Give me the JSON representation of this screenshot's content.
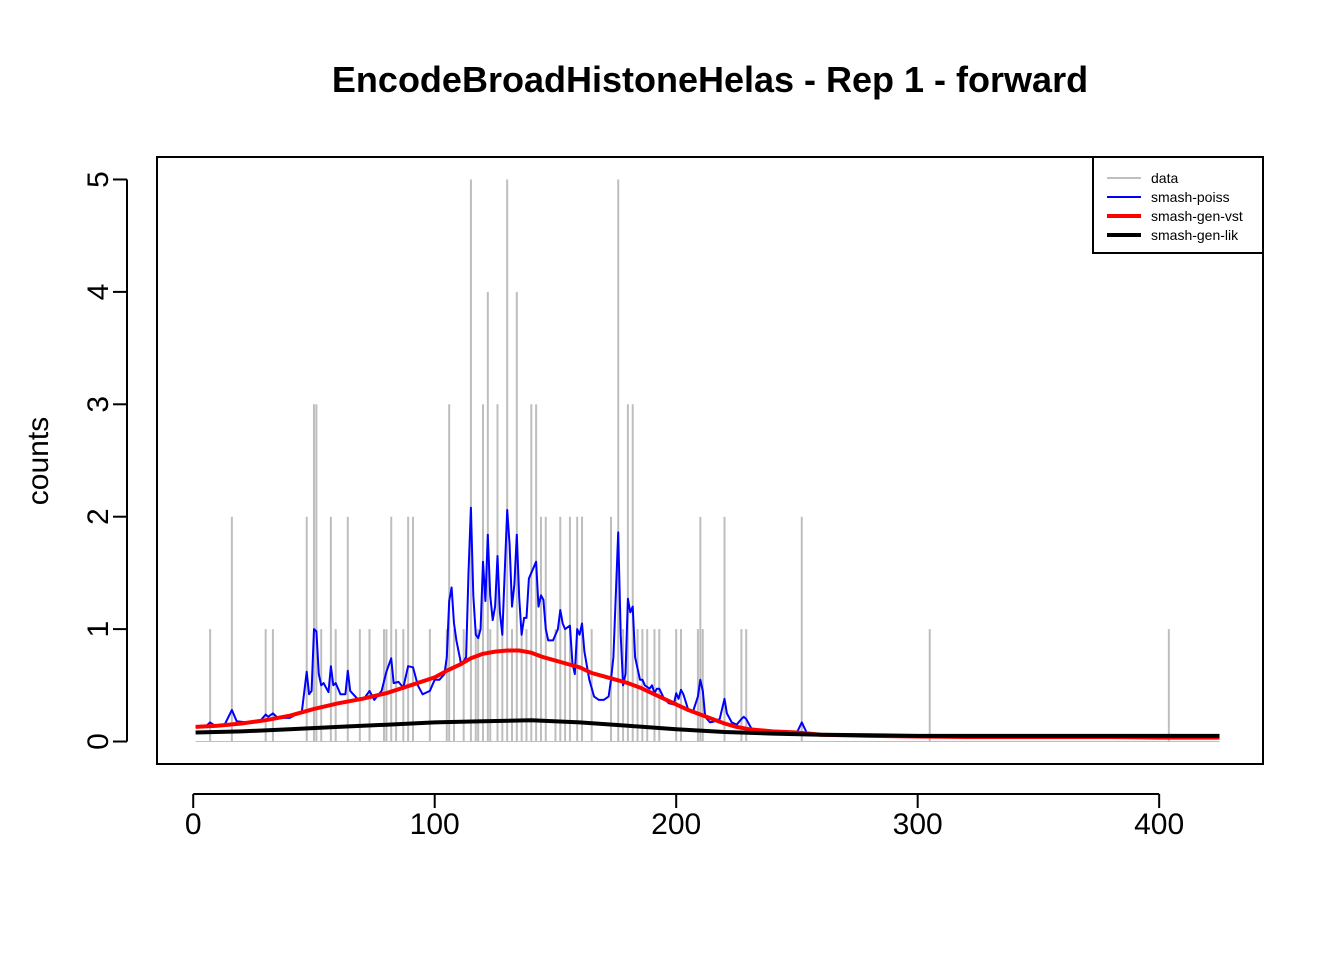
{
  "chart_data": {
    "type": "line",
    "title": "EncodeBroadHistoneHelas - Rep 1 - forward",
    "xlabel": "",
    "ylabel": "counts",
    "xlim": [
      -15,
      443
    ],
    "ylim": [
      -0.2,
      5.2
    ],
    "xticks": [
      0,
      100,
      200,
      300,
      400
    ],
    "yticks": [
      0,
      1,
      2,
      3,
      4,
      5
    ],
    "legend_position": "top-right",
    "colors": {
      "data": "#bebebe",
      "smash_poiss": "#0000ff",
      "smash_gen_vst": "#ff0000",
      "smash_gen_lik": "#000000",
      "faint_line": "#ff00ff"
    },
    "data_spikes": [
      {
        "x": 7,
        "y": 1
      },
      {
        "x": 16,
        "y": 2
      },
      {
        "x": 30,
        "y": 1
      },
      {
        "x": 33,
        "y": 1
      },
      {
        "x": 47,
        "y": 2
      },
      {
        "x": 50,
        "y": 3
      },
      {
        "x": 51,
        "y": 3
      },
      {
        "x": 53,
        "y": 1
      },
      {
        "x": 57,
        "y": 2
      },
      {
        "x": 59,
        "y": 1
      },
      {
        "x": 64,
        "y": 2
      },
      {
        "x": 69,
        "y": 1
      },
      {
        "x": 73,
        "y": 1
      },
      {
        "x": 79,
        "y": 1
      },
      {
        "x": 80,
        "y": 1
      },
      {
        "x": 82,
        "y": 2
      },
      {
        "x": 84,
        "y": 1
      },
      {
        "x": 87,
        "y": 1
      },
      {
        "x": 89,
        "y": 2
      },
      {
        "x": 91,
        "y": 2
      },
      {
        "x": 98,
        "y": 1
      },
      {
        "x": 105,
        "y": 1
      },
      {
        "x": 106,
        "y": 3
      },
      {
        "x": 108,
        "y": 1
      },
      {
        "x": 112,
        "y": 1
      },
      {
        "x": 115,
        "y": 5
      },
      {
        "x": 117,
        "y": 1
      },
      {
        "x": 118,
        "y": 1
      },
      {
        "x": 120,
        "y": 3
      },
      {
        "x": 122,
        "y": 4
      },
      {
        "x": 123,
        "y": 1
      },
      {
        "x": 126,
        "y": 3
      },
      {
        "x": 128,
        "y": 1
      },
      {
        "x": 130,
        "y": 5
      },
      {
        "x": 132,
        "y": 1
      },
      {
        "x": 134,
        "y": 4
      },
      {
        "x": 136,
        "y": 1
      },
      {
        "x": 138,
        "y": 1
      },
      {
        "x": 140,
        "y": 3
      },
      {
        "x": 142,
        "y": 3
      },
      {
        "x": 144,
        "y": 2
      },
      {
        "x": 146,
        "y": 2
      },
      {
        "x": 150,
        "y": 1
      },
      {
        "x": 152,
        "y": 2
      },
      {
        "x": 154,
        "y": 1
      },
      {
        "x": 156,
        "y": 2
      },
      {
        "x": 159,
        "y": 2
      },
      {
        "x": 161,
        "y": 2
      },
      {
        "x": 165,
        "y": 1
      },
      {
        "x": 173,
        "y": 2
      },
      {
        "x": 176,
        "y": 5
      },
      {
        "x": 178,
        "y": 1
      },
      {
        "x": 180,
        "y": 3
      },
      {
        "x": 182,
        "y": 3
      },
      {
        "x": 184,
        "y": 1
      },
      {
        "x": 186,
        "y": 1
      },
      {
        "x": 188,
        "y": 1
      },
      {
        "x": 191,
        "y": 1
      },
      {
        "x": 193,
        "y": 1
      },
      {
        "x": 200,
        "y": 1
      },
      {
        "x": 202,
        "y": 1
      },
      {
        "x": 209,
        "y": 1
      },
      {
        "x": 210,
        "y": 2
      },
      {
        "x": 211,
        "y": 1
      },
      {
        "x": 220,
        "y": 2
      },
      {
        "x": 227,
        "y": 1
      },
      {
        "x": 229,
        "y": 1
      },
      {
        "x": 252,
        "y": 2
      },
      {
        "x": 305,
        "y": 1
      },
      {
        "x": 404,
        "y": 1
      }
    ],
    "series": [
      {
        "name": "smash-poiss",
        "color": "#0000ff",
        "points": [
          [
            1,
            0.13
          ],
          [
            5,
            0.13
          ],
          [
            7,
            0.17
          ],
          [
            9,
            0.14
          ],
          [
            13,
            0.15
          ],
          [
            16,
            0.28
          ],
          [
            18,
            0.18
          ],
          [
            22,
            0.17
          ],
          [
            28,
            0.19
          ],
          [
            30,
            0.24
          ],
          [
            31,
            0.22
          ],
          [
            33,
            0.25
          ],
          [
            35,
            0.21
          ],
          [
            40,
            0.21
          ],
          [
            45,
            0.27
          ],
          [
            47,
            0.62
          ],
          [
            48,
            0.42
          ],
          [
            49,
            0.45
          ],
          [
            50,
            1.0
          ],
          [
            51,
            0.98
          ],
          [
            52,
            0.6
          ],
          [
            53,
            0.5
          ],
          [
            54,
            0.52
          ],
          [
            56,
            0.44
          ],
          [
            57,
            0.67
          ],
          [
            58,
            0.5
          ],
          [
            59,
            0.52
          ],
          [
            61,
            0.42
          ],
          [
            63,
            0.42
          ],
          [
            64,
            0.63
          ],
          [
            65,
            0.45
          ],
          [
            68,
            0.38
          ],
          [
            71,
            0.39
          ],
          [
            73,
            0.45
          ],
          [
            75,
            0.37
          ],
          [
            78,
            0.45
          ],
          [
            80,
            0.62
          ],
          [
            82,
            0.74
          ],
          [
            83,
            0.52
          ],
          [
            85,
            0.53
          ],
          [
            87,
            0.48
          ],
          [
            89,
            0.67
          ],
          [
            91,
            0.66
          ],
          [
            93,
            0.5
          ],
          [
            95,
            0.42
          ],
          [
            98,
            0.45
          ],
          [
            100,
            0.55
          ],
          [
            102,
            0.55
          ],
          [
            104,
            0.6
          ],
          [
            105,
            0.75
          ],
          [
            106,
            1.25
          ],
          [
            107,
            1.37
          ],
          [
            108,
            1.05
          ],
          [
            109,
            0.9
          ],
          [
            111,
            0.68
          ],
          [
            113,
            0.75
          ],
          [
            114,
            1.5
          ],
          [
            115,
            2.08
          ],
          [
            116,
            1.3
          ],
          [
            117,
            0.95
          ],
          [
            118,
            0.92
          ],
          [
            119,
            1.0
          ],
          [
            120,
            1.6
          ],
          [
            121,
            1.25
          ],
          [
            122,
            1.84
          ],
          [
            123,
            1.3
          ],
          [
            124,
            1.08
          ],
          [
            125,
            1.2
          ],
          [
            126,
            1.65
          ],
          [
            127,
            1.15
          ],
          [
            128,
            0.95
          ],
          [
            129,
            1.5
          ],
          [
            130,
            2.06
          ],
          [
            131,
            1.75
          ],
          [
            132,
            1.2
          ],
          [
            133,
            1.4
          ],
          [
            134,
            1.84
          ],
          [
            135,
            1.28
          ],
          [
            136,
            0.95
          ],
          [
            137,
            1.1
          ],
          [
            138,
            1.1
          ],
          [
            139,
            1.45
          ],
          [
            140,
            1.5
          ],
          [
            141,
            1.55
          ],
          [
            142,
            1.6
          ],
          [
            143,
            1.2
          ],
          [
            144,
            1.3
          ],
          [
            145,
            1.26
          ],
          [
            146,
            1.0
          ],
          [
            147,
            0.9
          ],
          [
            149,
            0.9
          ],
          [
            151,
            1.0
          ],
          [
            152,
            1.17
          ],
          [
            153,
            1.05
          ],
          [
            154,
            1.0
          ],
          [
            156,
            1.03
          ],
          [
            157,
            0.7
          ],
          [
            158,
            0.6
          ],
          [
            159,
            1.0
          ],
          [
            160,
            0.95
          ],
          [
            161,
            1.05
          ],
          [
            162,
            0.8
          ],
          [
            164,
            0.55
          ],
          [
            166,
            0.4
          ],
          [
            168,
            0.37
          ],
          [
            170,
            0.37
          ],
          [
            172,
            0.4
          ],
          [
            173,
            0.55
          ],
          [
            174,
            0.75
          ],
          [
            175,
            1.3
          ],
          [
            176,
            1.86
          ],
          [
            177,
            0.95
          ],
          [
            178,
            0.5
          ],
          [
            179,
            0.6
          ],
          [
            180,
            1.27
          ],
          [
            181,
            1.15
          ],
          [
            182,
            1.2
          ],
          [
            183,
            0.75
          ],
          [
            185,
            0.55
          ],
          [
            186,
            0.55
          ],
          [
            187,
            0.5
          ],
          [
            189,
            0.47
          ],
          [
            190,
            0.5
          ],
          [
            191,
            0.43
          ],
          [
            192,
            0.47
          ],
          [
            193,
            0.47
          ],
          [
            195,
            0.38
          ],
          [
            197,
            0.34
          ],
          [
            199,
            0.33
          ],
          [
            200,
            0.43
          ],
          [
            201,
            0.38
          ],
          [
            202,
            0.46
          ],
          [
            203,
            0.42
          ],
          [
            205,
            0.28
          ],
          [
            207,
            0.27
          ],
          [
            209,
            0.4
          ],
          [
            210,
            0.55
          ],
          [
            211,
            0.45
          ],
          [
            212,
            0.22
          ],
          [
            214,
            0.17
          ],
          [
            216,
            0.18
          ],
          [
            218,
            0.2
          ],
          [
            220,
            0.38
          ],
          [
            221,
            0.25
          ],
          [
            223,
            0.17
          ],
          [
            225,
            0.15
          ],
          [
            227,
            0.2
          ],
          [
            228,
            0.22
          ],
          [
            229,
            0.2
          ],
          [
            231,
            0.12
          ],
          [
            235,
            0.08
          ],
          [
            245,
            0.07
          ],
          [
            250,
            0.08
          ],
          [
            252,
            0.17
          ],
          [
            254,
            0.08
          ],
          [
            260,
            0.06
          ],
          [
            280,
            0.05
          ],
          [
            300,
            0.04
          ],
          [
            320,
            0.04
          ],
          [
            340,
            0.04
          ],
          [
            360,
            0.04
          ],
          [
            380,
            0.04
          ],
          [
            400,
            0.04
          ],
          [
            425,
            0.04
          ]
        ]
      },
      {
        "name": "smash-gen-vst",
        "color": "#ff0000",
        "points": [
          [
            1,
            0.13
          ],
          [
            10,
            0.14
          ],
          [
            20,
            0.16
          ],
          [
            30,
            0.19
          ],
          [
            40,
            0.23
          ],
          [
            50,
            0.29
          ],
          [
            60,
            0.34
          ],
          [
            70,
            0.38
          ],
          [
            80,
            0.43
          ],
          [
            90,
            0.5
          ],
          [
            100,
            0.57
          ],
          [
            105,
            0.63
          ],
          [
            110,
            0.68
          ],
          [
            115,
            0.74
          ],
          [
            120,
            0.78
          ],
          [
            125,
            0.8
          ],
          [
            130,
            0.81
          ],
          [
            135,
            0.81
          ],
          [
            140,
            0.79
          ],
          [
            145,
            0.75
          ],
          [
            150,
            0.72
          ],
          [
            155,
            0.69
          ],
          [
            160,
            0.66
          ],
          [
            165,
            0.61
          ],
          [
            170,
            0.58
          ],
          [
            175,
            0.55
          ],
          [
            180,
            0.52
          ],
          [
            185,
            0.48
          ],
          [
            190,
            0.43
          ],
          [
            195,
            0.38
          ],
          [
            200,
            0.33
          ],
          [
            205,
            0.28
          ],
          [
            210,
            0.24
          ],
          [
            215,
            0.2
          ],
          [
            220,
            0.16
          ],
          [
            225,
            0.13
          ],
          [
            230,
            0.11
          ],
          [
            240,
            0.09
          ],
          [
            250,
            0.08
          ],
          [
            260,
            0.06
          ],
          [
            280,
            0.05
          ],
          [
            300,
            0.045
          ],
          [
            320,
            0.04
          ],
          [
            350,
            0.04
          ],
          [
            380,
            0.04
          ],
          [
            400,
            0.035
          ],
          [
            425,
            0.035
          ]
        ]
      },
      {
        "name": "smash-gen-lik",
        "color": "#000000",
        "points": [
          [
            1,
            0.08
          ],
          [
            20,
            0.09
          ],
          [
            40,
            0.11
          ],
          [
            60,
            0.13
          ],
          [
            80,
            0.15
          ],
          [
            100,
            0.17
          ],
          [
            120,
            0.18
          ],
          [
            140,
            0.19
          ],
          [
            160,
            0.17
          ],
          [
            180,
            0.14
          ],
          [
            200,
            0.11
          ],
          [
            220,
            0.085
          ],
          [
            240,
            0.07
          ],
          [
            260,
            0.06
          ],
          [
            280,
            0.055
          ],
          [
            300,
            0.05
          ],
          [
            320,
            0.05
          ],
          [
            350,
            0.05
          ],
          [
            380,
            0.05
          ],
          [
            400,
            0.05
          ],
          [
            425,
            0.05
          ]
        ]
      }
    ],
    "legend": [
      {
        "label": "data",
        "color": "#bebebe",
        "width": 2
      },
      {
        "label": "smash-poiss",
        "color": "#0000ff",
        "width": 2
      },
      {
        "label": "smash-gen-vst",
        "color": "#ff0000",
        "width": 4
      },
      {
        "label": "smash-gen-lik",
        "color": "#000000",
        "width": 4
      }
    ]
  }
}
